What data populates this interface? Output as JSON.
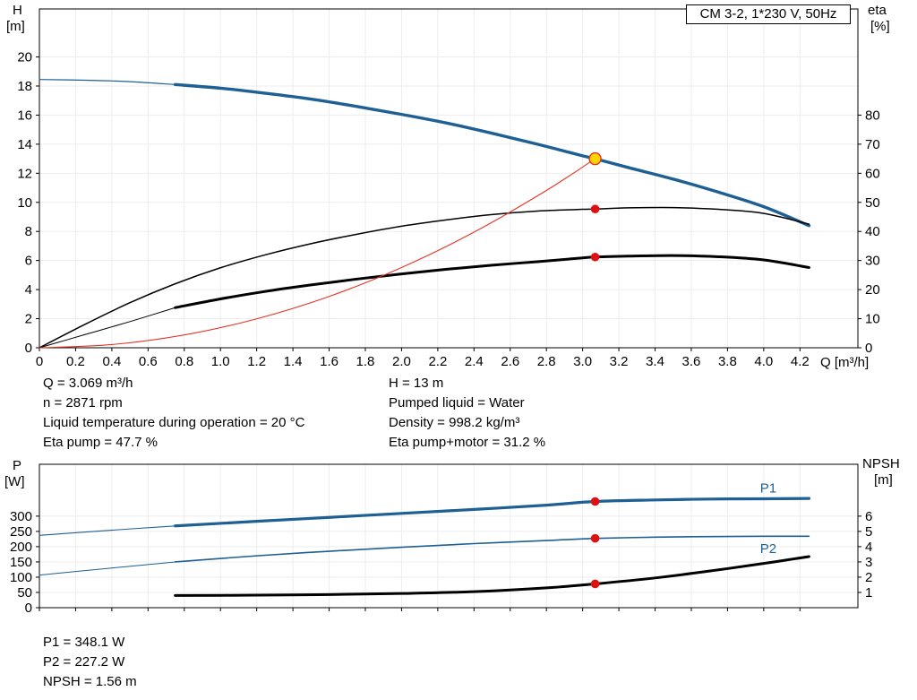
{
  "title_box": "CM 3-2, 1*230 V, 50Hz",
  "colors": {
    "blue": "#1e5f94",
    "red": "#e63323",
    "dot_red": "#e01010",
    "yellow": "#ffd400",
    "black": "#000000",
    "grid": "#ededed"
  },
  "info_top": {
    "col1": [
      "Q = 3.069 m³/h",
      "n = 2871 rpm",
      "Liquid temperature during operation = 20 °C",
      "Eta pump = 47.7 %"
    ],
    "col2": [
      "H = 13 m",
      "Pumped liquid = Water",
      "Density = 998.2 kg/m³",
      "Eta pump+motor = 31.2 %"
    ]
  },
  "info_bottom": [
    "P1 = 348.1 W",
    "P2 = 227.2 W",
    "NPSH = 1.56 m"
  ],
  "chart_data": [
    {
      "name": "qh-eta-curves",
      "type": "line",
      "title": "CM 3-2, 1*230 V, 50Hz",
      "x": {
        "label": "Q [m³/h]",
        "min": 0,
        "max": 4.52,
        "ticks": [
          "0",
          "0.2",
          "0.4",
          "0.6",
          "0.8",
          "1.0",
          "1.2",
          "1.4",
          "1.6",
          "1.8",
          "2.0",
          "2.2",
          "2.4",
          "2.6",
          "2.8",
          "3.0",
          "3.2",
          "3.4",
          "3.6",
          "3.8",
          "4.0",
          "4.2"
        ]
      },
      "y_left": {
        "label": "H",
        "unit": "[m]",
        "min": 0,
        "max": 23.3,
        "ticks": [
          "0",
          "2",
          "4",
          "6",
          "8",
          "10",
          "12",
          "14",
          "16",
          "18",
          "20"
        ]
      },
      "y_right": {
        "label": "eta",
        "unit": "[%]",
        "min": 0,
        "max": 116.5,
        "ticks": [
          "0",
          "10",
          "20",
          "30",
          "40",
          "50",
          "60",
          "70",
          "80"
        ]
      },
      "series": [
        {
          "name": "head",
          "axis": "left",
          "color": "blue",
          "width": 3.4,
          "lead_width": 1.2,
          "lead_until": 0.75,
          "points": [
            [
              0,
              18.45
            ],
            [
              0.25,
              18.4
            ],
            [
              0.5,
              18.3
            ],
            [
              0.75,
              18.1
            ],
            [
              1,
              17.85
            ],
            [
              1.25,
              17.5
            ],
            [
              1.5,
              17.1
            ],
            [
              1.75,
              16.6
            ],
            [
              2,
              16.05
            ],
            [
              2.25,
              15.45
            ],
            [
              2.5,
              14.75
            ],
            [
              2.75,
              14
            ],
            [
              3,
              13.2
            ],
            [
              3.069,
              13
            ],
            [
              3.25,
              12.4
            ],
            [
              3.5,
              11.6
            ],
            [
              3.75,
              10.7
            ],
            [
              4,
              9.7
            ],
            [
              4.25,
              8.4
            ]
          ]
        },
        {
          "name": "eta-pump",
          "axis": "right",
          "color": "black",
          "width": 1.5,
          "points": [
            [
              0,
              0
            ],
            [
              0.25,
              8
            ],
            [
              0.5,
              15.5
            ],
            [
              0.75,
              22
            ],
            [
              1,
              27.5
            ],
            [
              1.25,
              32
            ],
            [
              1.5,
              35.8
            ],
            [
              1.75,
              39
            ],
            [
              2,
              41.8
            ],
            [
              2.25,
              44
            ],
            [
              2.5,
              45.8
            ],
            [
              2.75,
              47
            ],
            [
              3,
              47.6
            ],
            [
              3.069,
              47.7
            ],
            [
              3.25,
              48.1
            ],
            [
              3.5,
              48.2
            ],
            [
              3.75,
              47.6
            ],
            [
              4,
              46.2
            ],
            [
              4.25,
              42.5
            ]
          ]
        },
        {
          "name": "eta-pump-motor",
          "axis": "right",
          "color": "black",
          "width": 3,
          "lead_width": 1,
          "lead_until": 0.75,
          "points": [
            [
              0,
              0
            ],
            [
              0.25,
              4.5
            ],
            [
              0.5,
              9
            ],
            [
              0.75,
              13.8
            ],
            [
              1,
              16.8
            ],
            [
              1.25,
              19.4
            ],
            [
              1.5,
              21.6
            ],
            [
              1.75,
              23.6
            ],
            [
              2,
              25.4
            ],
            [
              2.25,
              27
            ],
            [
              2.5,
              28.4
            ],
            [
              2.75,
              29.6
            ],
            [
              3,
              30.9
            ],
            [
              3.069,
              31.2
            ],
            [
              3.25,
              31.5
            ],
            [
              3.5,
              31.7
            ],
            [
              3.75,
              31.3
            ],
            [
              4,
              30.2
            ],
            [
              4.25,
              27.6
            ]
          ]
        },
        {
          "name": "system-curve",
          "axis": "left",
          "color": "red",
          "width": 1.1,
          "points": [
            [
              0,
              0
            ],
            [
              0.4,
              0.22
            ],
            [
              0.8,
              0.88
            ],
            [
              1.2,
              1.99
            ],
            [
              1.6,
              3.53
            ],
            [
              2,
              5.52
            ],
            [
              2.4,
              7.95
            ],
            [
              2.8,
              10.82
            ],
            [
              3.069,
              13
            ]
          ]
        }
      ],
      "markers": [
        {
          "name": "duty-point",
          "style": "duty",
          "axis": "left",
          "q": 3.069,
          "value": 13
        },
        {
          "name": "eta-pump-dot",
          "style": "dot",
          "axis": "right",
          "q": 3.069,
          "value": 47.7
        },
        {
          "name": "eta-pump-motor-dot",
          "style": "dot",
          "axis": "right",
          "q": 3.069,
          "value": 31.2
        }
      ],
      "labels": []
    },
    {
      "name": "power-npsh-curves",
      "type": "line",
      "x": {
        "label": "",
        "min": 0,
        "max": 4.52,
        "ticks": [
          "0",
          "0.2",
          "0.4",
          "0.6",
          "0.8",
          "1.0",
          "1.2",
          "1.4",
          "1.6",
          "1.8",
          "2.0",
          "2.2",
          "2.4",
          "2.6",
          "2.8",
          "3.0",
          "3.2",
          "3.4",
          "3.6",
          "3.8",
          "4.0",
          "4.2"
        ]
      },
      "y_left": {
        "label": "P",
        "unit": "[W]",
        "min": 0,
        "max": 470,
        "ticks": [
          "0",
          "50",
          "100",
          "150",
          "200",
          "250",
          "300"
        ]
      },
      "y_right": {
        "label": "NPSH",
        "unit": "[m]",
        "min": 0,
        "max": 9.4,
        "ticks": [
          "1",
          "2",
          "3",
          "4",
          "5",
          "6"
        ]
      },
      "series": [
        {
          "name": "p1",
          "axis": "left",
          "color": "blue",
          "width": 3.2,
          "lead_width": 1.1,
          "lead_until": 0.75,
          "points": [
            [
              0,
              237
            ],
            [
              0.4,
              254
            ],
            [
              0.75,
              268
            ],
            [
              1.2,
              283
            ],
            [
              1.6,
              296
            ],
            [
              2,
              309
            ],
            [
              2.4,
              322
            ],
            [
              2.8,
              336
            ],
            [
              3.069,
              348
            ],
            [
              3.4,
              353
            ],
            [
              3.7,
              356
            ],
            [
              4,
              357
            ],
            [
              4.25,
              358
            ]
          ]
        },
        {
          "name": "p2",
          "axis": "left",
          "color": "blue",
          "width": 1.6,
          "lead_width": 1,
          "lead_until": 0.75,
          "points": [
            [
              0,
              107
            ],
            [
              0.4,
              130
            ],
            [
              0.75,
              150
            ],
            [
              1.2,
              170
            ],
            [
              1.6,
              185
            ],
            [
              2,
              198
            ],
            [
              2.4,
              210
            ],
            [
              2.8,
              220
            ],
            [
              3.069,
              227
            ],
            [
              3.4,
              231
            ],
            [
              3.7,
              233
            ],
            [
              4,
              234
            ],
            [
              4.25,
              234
            ]
          ]
        },
        {
          "name": "npsh",
          "axis": "right",
          "color": "black",
          "width": 3,
          "points": [
            [
              0.75,
              0.8
            ],
            [
              1.2,
              0.82
            ],
            [
              1.6,
              0.86
            ],
            [
              2,
              0.93
            ],
            [
              2.4,
              1.05
            ],
            [
              2.8,
              1.3
            ],
            [
              3.069,
              1.56
            ],
            [
              3.4,
              1.95
            ],
            [
              3.7,
              2.4
            ],
            [
              4,
              2.9
            ],
            [
              4.25,
              3.35
            ]
          ]
        }
      ],
      "markers": [
        {
          "name": "p1-dot",
          "style": "dot",
          "axis": "left",
          "q": 3.069,
          "value": 348.1
        },
        {
          "name": "p2-dot",
          "style": "dot",
          "axis": "left",
          "q": 3.069,
          "value": 227.2
        },
        {
          "name": "npsh-dot",
          "style": "dot",
          "axis": "right",
          "q": 3.069,
          "value": 1.56
        }
      ],
      "labels": [
        {
          "text": "P1",
          "axis": "left",
          "q": 3.98,
          "value": 392,
          "color": "blue"
        },
        {
          "text": "P2",
          "axis": "left",
          "q": 3.98,
          "value": 194,
          "color": "blue"
        }
      ]
    }
  ]
}
